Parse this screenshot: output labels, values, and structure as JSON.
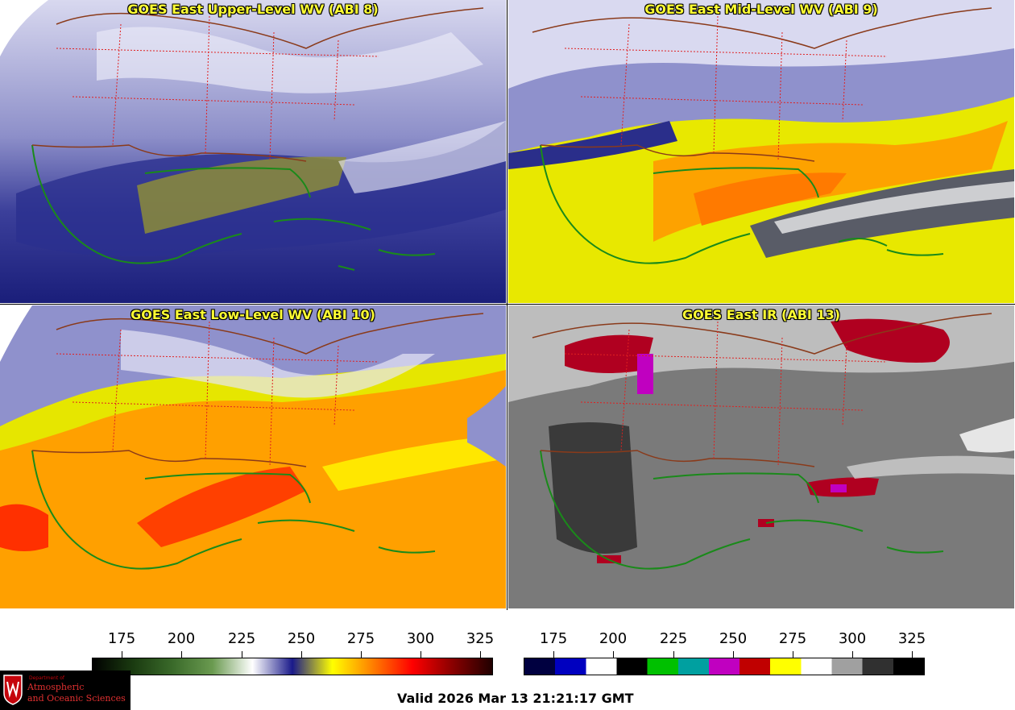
{
  "panels": [
    {
      "title": "GOES East Upper-Level WV (ABI 8)"
    },
    {
      "title": "GOES East Mid-Level WV (ABI 9)"
    },
    {
      "title": "GOES East Low-Level WV (ABI 10)"
    },
    {
      "title": "GOES East IR (ABI 13)"
    }
  ],
  "colorbars": {
    "wv": {
      "ticks": [
        "175",
        "200",
        "225",
        "250",
        "275",
        "300",
        "325"
      ],
      "colors": [
        "#000000",
        "#1a3a10",
        "#3a6a2a",
        "#6a9a50",
        "#ffffff",
        "#1a1a8a",
        "#ffff00",
        "#ff8000",
        "#ff0000",
        "#8a0000",
        "#200000"
      ]
    },
    "ir": {
      "ticks": [
        "175",
        "200",
        "225",
        "250",
        "275",
        "300",
        "325"
      ],
      "colors": [
        "#000040",
        "#0000c0",
        "#ffffff",
        "#000000",
        "#00c000",
        "#00a0a0",
        "#c000c0",
        "#c00000",
        "#ffff00",
        "#ffffff",
        "#a0a0a0",
        "#303030",
        "#000000"
      ]
    }
  },
  "logo": {
    "dept": "Department of",
    "line1": "Atmospheric",
    "line2": "and Oceanic Sciences"
  },
  "valid": "Valid 2026 Mar 13 21:21:17 GMT"
}
